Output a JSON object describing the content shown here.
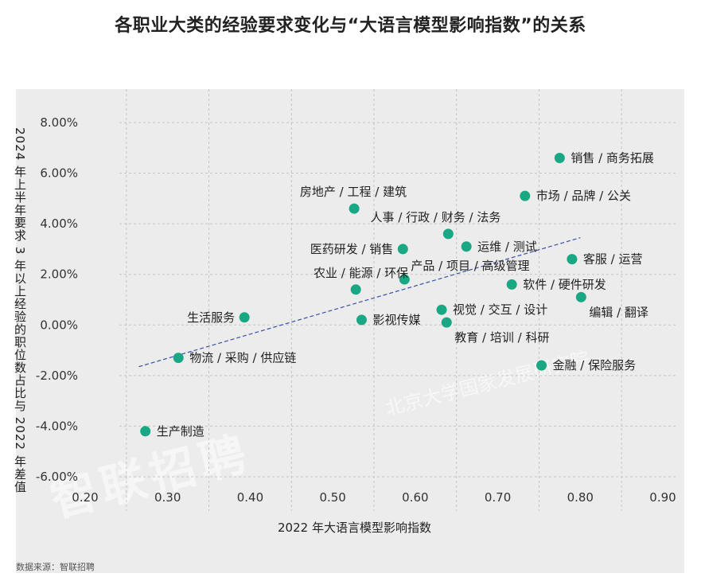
{
  "title": "各职业大类的经验要求变化与“大语言模型影响指数”的关系",
  "source": "数据来源：智联招聘",
  "watermark": "智联招聘",
  "watermark2": "北京大学国家发展研究院",
  "chart_data": {
    "type": "scatter",
    "title": "各职业大类的经验要求变化与“大语言模型影响指数”的关系",
    "xlabel": "2022 年大语言模型影响指数",
    "ylabel": "2024 年上半年要求 3 年以上经验的职位数占比与 2022 年差值",
    "xlim": [
      0.2,
      0.9
    ],
    "ylim": [
      -0.065,
      0.085
    ],
    "x_ticks": [
      "0.20",
      "0.30",
      "0.40",
      "0.50",
      "0.60",
      "0.70",
      "0.80",
      "0.90"
    ],
    "x_tick_values": [
      0.2,
      0.3,
      0.4,
      0.5,
      0.6,
      0.7,
      0.8,
      0.9
    ],
    "y_ticks": [
      "-6.00%",
      "-4.00%",
      "-2.00%",
      "0.00%",
      "2.00%",
      "4.00%",
      "6.00%",
      "8.00%"
    ],
    "y_tick_values": [
      -0.06,
      -0.04,
      -0.02,
      0.0,
      0.02,
      0.04,
      0.06,
      0.08
    ],
    "grid": true,
    "point_color": "#1aa784",
    "trend_color": "#3b4fa8",
    "trendline": {
      "x": [
        0.265,
        0.8
      ],
      "y": [
        -0.0165,
        0.0345
      ]
    },
    "points": [
      {
        "label": "销售 / 商务拓展",
        "x": 0.775,
        "y": 0.066,
        "pos": "right"
      },
      {
        "label": "市场 / 品牌 / 公关",
        "x": 0.733,
        "y": 0.051,
        "pos": "right"
      },
      {
        "label": "房地产 / 工程 / 建筑",
        "x": 0.526,
        "y": 0.046,
        "pos": "above-left"
      },
      {
        "label": "人事 / 行政 / 财务 / 法务",
        "x": 0.64,
        "y": 0.036,
        "pos": "above-left"
      },
      {
        "label": "运维 / 测试",
        "x": 0.662,
        "y": 0.031,
        "pos": "right"
      },
      {
        "label": "医药研发 / 销售",
        "x": 0.585,
        "y": 0.03,
        "pos": "left"
      },
      {
        "label": "客服 / 运营",
        "x": 0.79,
        "y": 0.026,
        "pos": "right"
      },
      {
        "label": "产品 / 项目 / 高级管理",
        "x": 0.587,
        "y": 0.018,
        "pos": "above-right"
      },
      {
        "label": "软件 / 硬件研发",
        "x": 0.717,
        "y": 0.016,
        "pos": "right"
      },
      {
        "label": "农业 / 能源 / 环保",
        "x": 0.528,
        "y": 0.014,
        "pos": "above-left"
      },
      {
        "label": "编辑 / 翻译",
        "x": 0.801,
        "y": 0.011,
        "pos": "below-right"
      },
      {
        "label": "视觉 / 交互 / 设计",
        "x": 0.632,
        "y": 0.006,
        "pos": "right"
      },
      {
        "label": "生活服务",
        "x": 0.393,
        "y": 0.003,
        "pos": "left"
      },
      {
        "label": "影视传媒",
        "x": 0.535,
        "y": 0.002,
        "pos": "right"
      },
      {
        "label": "教育 / 培训 / 科研",
        "x": 0.638,
        "y": 0.001,
        "pos": "below-right"
      },
      {
        "label": "物流 / 采购 / 供应链",
        "x": 0.313,
        "y": -0.013,
        "pos": "right"
      },
      {
        "label": "金融 / 保险服务",
        "x": 0.753,
        "y": -0.016,
        "pos": "right"
      },
      {
        "label": "生产制造",
        "x": 0.273,
        "y": -0.042,
        "pos": "right"
      }
    ]
  }
}
